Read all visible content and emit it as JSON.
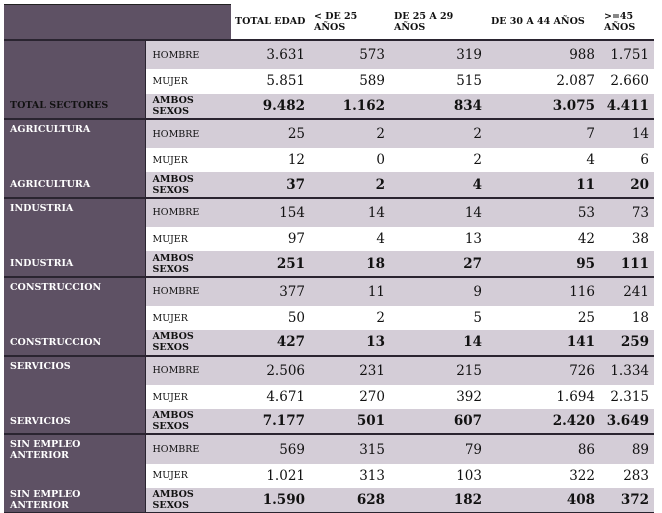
{
  "headers": {
    "total": "TOTAL EDAD",
    "lt25": "< DE 25 AÑOS",
    "a25_29": "DE 25 A 29 AÑOS",
    "a30_44": "DE 30 A 44 AÑOS",
    "ge45_line1": ">=45",
    "ge45_line2": "AÑOS"
  },
  "sex_labels": {
    "hombre": "HOMBRE",
    "mujer": "MUJER",
    "ambos": "AMBOS SEXOS"
  },
  "colors": {
    "sector_band": "#5e5164",
    "row_shade": "#d4cdd7"
  },
  "sectors": [
    {
      "name": "",
      "ambos_label": "TOTAL SECTORES",
      "hombre": [
        "3.631",
        "573",
        "319",
        "988",
        "1.751"
      ],
      "mujer": [
        "5.851",
        "589",
        "515",
        "2.087",
        "2.660"
      ],
      "ambos": [
        "9.482",
        "1.162",
        "834",
        "3.075",
        "4.411"
      ]
    },
    {
      "name": "AGRICULTURA",
      "ambos_label": "AGRICULTURA",
      "hombre": [
        "25",
        "2",
        "2",
        "7",
        "14"
      ],
      "mujer": [
        "12",
        "0",
        "2",
        "4",
        "6"
      ],
      "ambos": [
        "37",
        "2",
        "4",
        "11",
        "20"
      ]
    },
    {
      "name": "INDUSTRIA",
      "ambos_label": "INDUSTRIA",
      "hombre": [
        "154",
        "14",
        "14",
        "53",
        "73"
      ],
      "mujer": [
        "97",
        "4",
        "13",
        "42",
        "38"
      ],
      "ambos": [
        "251",
        "18",
        "27",
        "95",
        "111"
      ]
    },
    {
      "name": "CONSTRUCCION",
      "ambos_label": "CONSTRUCCION",
      "hombre": [
        "377",
        "11",
        "9",
        "116",
        "241"
      ],
      "mujer": [
        "50",
        "2",
        "5",
        "25",
        "18"
      ],
      "ambos": [
        "427",
        "13",
        "14",
        "141",
        "259"
      ]
    },
    {
      "name": "SERVICIOS",
      "ambos_label": "SERVICIOS",
      "hombre": [
        "2.506",
        "231",
        "215",
        "726",
        "1.334"
      ],
      "mujer": [
        "4.671",
        "270",
        "392",
        "1.694",
        "2.315"
      ],
      "ambos": [
        "7.177",
        "501",
        "607",
        "2.420",
        "3.649"
      ]
    },
    {
      "name": "SIN EMPLEO ANTERIOR",
      "ambos_label": "SIN EMPLEO ANTERIOR",
      "hombre": [
        "569",
        "315",
        "79",
        "86",
        "89"
      ],
      "mujer": [
        "1.021",
        "313",
        "103",
        "322",
        "283"
      ],
      "ambos": [
        "1.590",
        "628",
        "182",
        "408",
        "372"
      ]
    }
  ]
}
